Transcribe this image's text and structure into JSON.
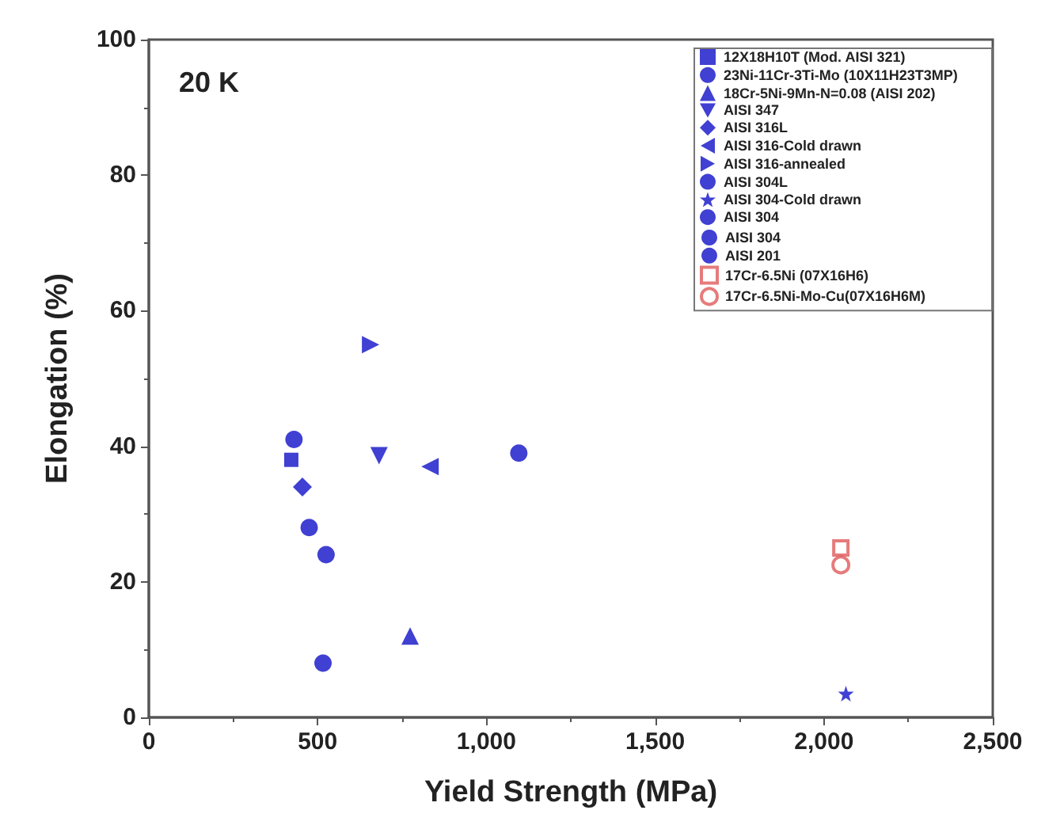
{
  "chart_data": {
    "type": "scatter",
    "xlabel": "Yield Strength (MPa)",
    "ylabel": "Elongation (%)",
    "annotations": [
      "20 K"
    ],
    "xlim": [
      0,
      2500
    ],
    "xticks": [
      0,
      500,
      {
        "value": 1000,
        "label": "1,000"
      },
      {
        "value": 1500,
        "label": "1,500"
      },
      {
        "value": 2000,
        "label": "2,000"
      },
      {
        "value": 2500,
        "label": "2,500"
      }
    ],
    "ylim": [
      0,
      100
    ],
    "yticks": [
      0,
      20,
      40,
      60,
      80,
      100
    ],
    "grid": false,
    "legend": "top right",
    "series": [
      {
        "name": "12X18H10T (Mod. AISI 321)",
        "color": "#1010c8",
        "marker": "square",
        "x": [
          422
        ],
        "values": [
          38
        ]
      },
      {
        "name": "23Ni-11Cr-3Ti-Mo (10X11H23T3MP)",
        "color": "#1010c8",
        "marker": "circle",
        "x": [
          1096
        ],
        "values": [
          39
        ]
      },
      {
        "name": "18Cr-5Ni-9Mn-N=0.08 (AISI 202)",
        "color": "#1010c8",
        "marker": "triangle",
        "x": [
          774
        ],
        "values": [
          12
        ]
      },
      {
        "name": "AISI 347",
        "color": "#1010c8",
        "marker": "triangle-down",
        "x": [
          682
        ],
        "values": [
          38.6
        ]
      },
      {
        "name": "AISI 316L",
        "color": "#1010c8",
        "marker": "diamond",
        "x": [
          455
        ],
        "values": [
          34
        ]
      },
      {
        "name": "AISI 316-Cold drawn",
        "color": "#1010c8",
        "marker": "triangle-left",
        "x": [
          833
        ],
        "values": [
          37
        ]
      },
      {
        "name": "AISI 316-annealed",
        "color": "#1010c8",
        "marker": "triangle-right",
        "x": [
          657
        ],
        "values": [
          55
        ]
      },
      {
        "name": "AISI 304L",
        "color": "#1010c8",
        "marker": "circle",
        "x": [
          430
        ],
        "values": [
          41
        ]
      },
      {
        "name": "AISI 304-Cold drawn",
        "color": "#1010c8",
        "marker": "star",
        "x": [
          2065
        ],
        "values": [
          3.5
        ]
      },
      {
        "name": "AISI 304",
        "color": "#1010c8",
        "marker": "circle",
        "x": [
          475
        ],
        "values": [
          28
        ]
      },
      {
        "name": "AISI 304",
        "color": "#1010c8",
        "marker": "circle",
        "x": [
          525
        ],
        "values": [
          24
        ]
      },
      {
        "name": "AISI 201",
        "color": "#1010c8",
        "marker": "circle",
        "x": [
          516
        ],
        "values": [
          8
        ]
      },
      {
        "name": "17Cr-6.5Ni (07X16H6)",
        "color": "#e05a5a",
        "marker": "square-open",
        "x": [
          2050
        ],
        "values": [
          25
        ]
      },
      {
        "name": "17Cr-6.5Ni-Mo-Cu(07X16H6M)",
        "color": "#e05a5a",
        "marker": "circle-open",
        "x": [
          2050
        ],
        "values": [
          22.5
        ]
      }
    ]
  }
}
